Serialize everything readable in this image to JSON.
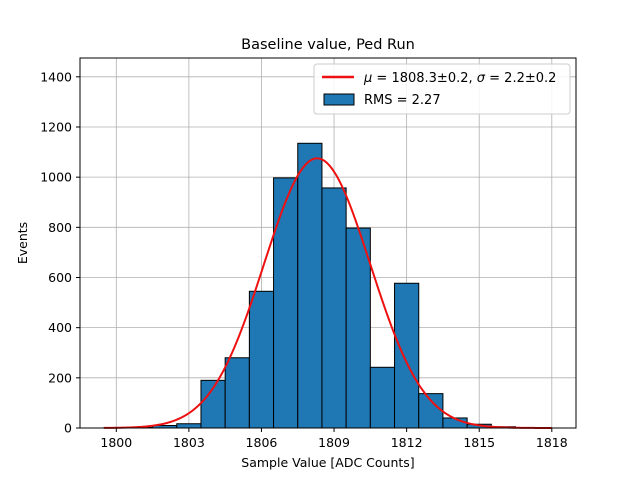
{
  "chart_data": {
    "type": "bar",
    "title": "Baseline value, Ped Run",
    "xlabel": "Sample Value [ADC Counts]",
    "ylabel": "Events",
    "xlim": [
      1798.5,
      1819.0
    ],
    "ylim": [
      0,
      1475
    ],
    "grid": true,
    "bin_width": 1,
    "xticks": [
      1800,
      1803,
      1806,
      1809,
      1812,
      1815,
      1818
    ],
    "yticks": [
      0,
      200,
      400,
      600,
      800,
      1000,
      1200,
      1400
    ],
    "bins": [
      {
        "left": 1799.5,
        "value": 2
      },
      {
        "left": 1800.5,
        "value": 3
      },
      {
        "left": 1801.5,
        "value": 10
      },
      {
        "left": 1802.5,
        "value": 17
      },
      {
        "left": 1803.5,
        "value": 190
      },
      {
        "left": 1804.5,
        "value": 280
      },
      {
        "left": 1805.5,
        "value": 545
      },
      {
        "left": 1806.5,
        "value": 997
      },
      {
        "left": 1807.5,
        "value": 1135
      },
      {
        "left": 1808.5,
        "value": 957
      },
      {
        "left": 1809.5,
        "value": 797
      },
      {
        "left": 1810.5,
        "value": 242
      },
      {
        "left": 1811.5,
        "value": 577
      },
      {
        "left": 1812.5,
        "value": 137
      },
      {
        "left": 1813.5,
        "value": 40
      },
      {
        "left": 1814.5,
        "value": 15
      },
      {
        "left": 1815.5,
        "value": 5
      },
      {
        "left": 1816.5,
        "value": 1
      },
      {
        "left": 1817.5,
        "value": 0
      }
    ],
    "fit": {
      "name": "gaussian",
      "mu": 1808.3,
      "sigma": 2.2,
      "amplitude": 1075,
      "x_range": [
        1799.5,
        1818.0
      ],
      "color": "#ee1111"
    },
    "bar_color": "#1f77b4",
    "edge_color": "#000000",
    "legend": {
      "position": "top-right",
      "entries": [
        {
          "type": "line",
          "label_prefix": "μ",
          "label_text": " = 1808.3±0.2, ",
          "label_sigma": "σ",
          "label_text2": " = 2.2±0.2"
        },
        {
          "type": "patch",
          "label_text": "RMS = 2.27"
        }
      ]
    }
  }
}
